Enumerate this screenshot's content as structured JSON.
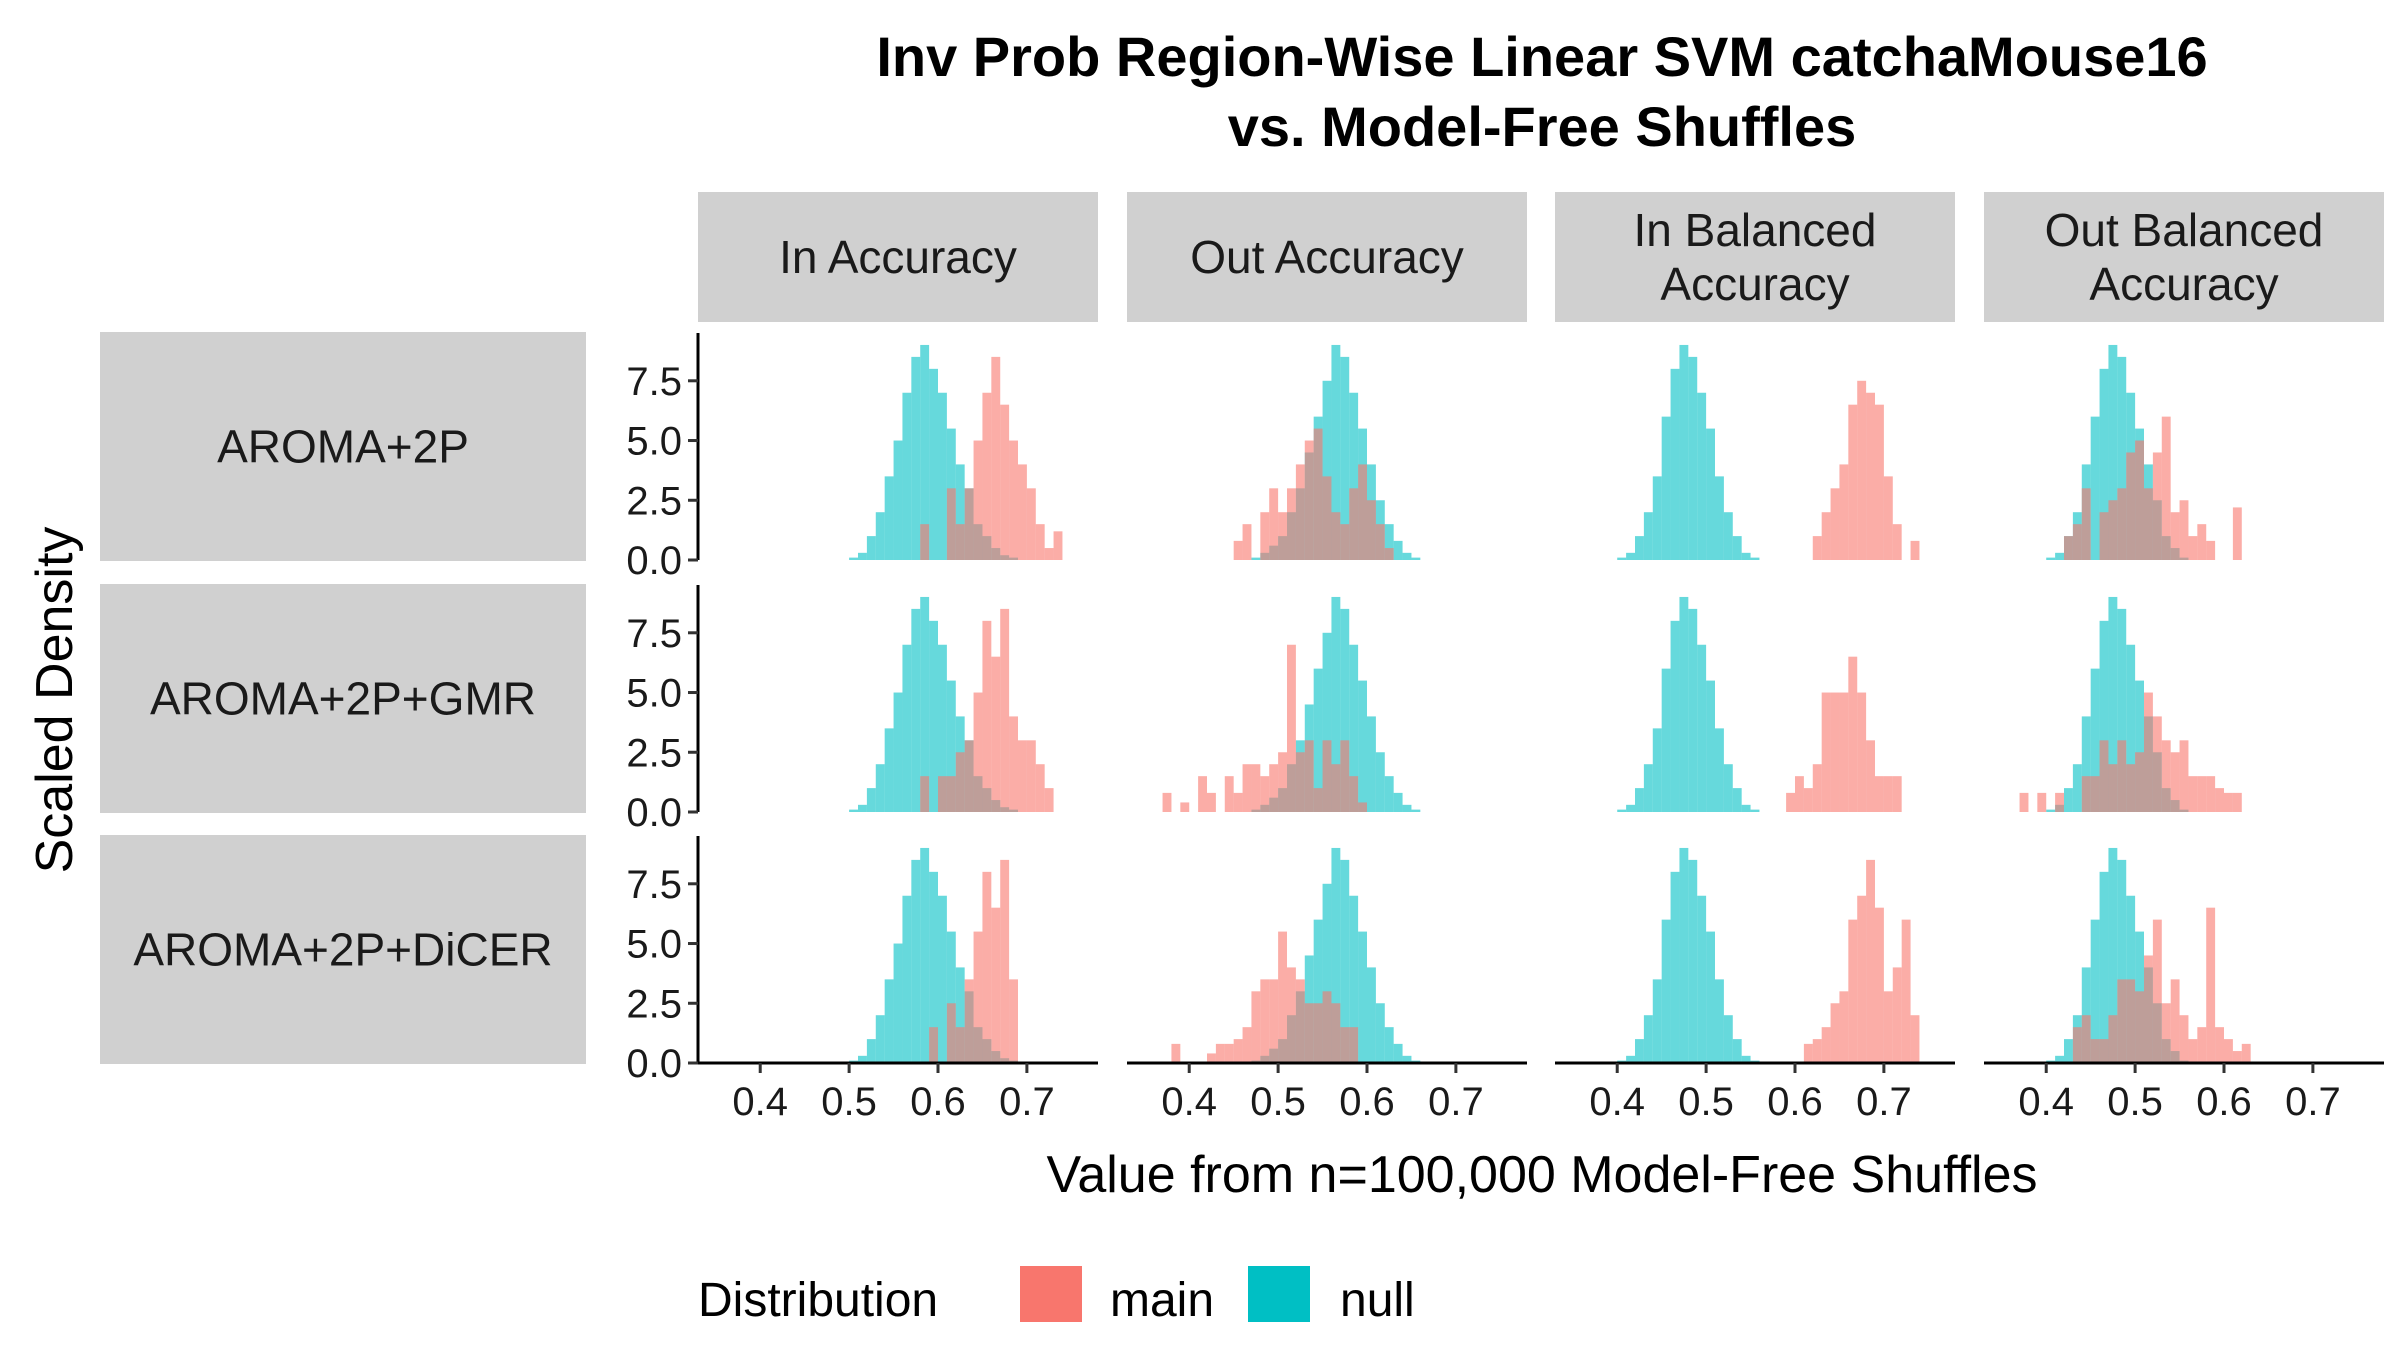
{
  "chart_data": {
    "type": "bar",
    "subtype": "faceted-histogram",
    "title_lines": [
      "Inv Prob Region-Wise Linear SVM catchaMouse16",
      "vs. Model-Free Shuffles"
    ],
    "xlabel": "Value from n=100,000 Model-Free Shuffles",
    "ylabel": "Scaled Density",
    "xlim": [
      0.33,
      0.78
    ],
    "ylim": [
      0,
      9.5
    ],
    "x_ticks": [
      0.4,
      0.5,
      0.6,
      0.7
    ],
    "x_tick_labels": [
      "0.4",
      "0.5",
      "0.6",
      "0.7"
    ],
    "y_ticks": [
      0,
      2.5,
      5,
      7.5
    ],
    "y_tick_labels": [
      "0.0",
      "2.5",
      "5.0",
      "7.5"
    ],
    "bin_width": 0.01,
    "columns": [
      "In Accuracy",
      "Out Accuracy",
      "In Balanced\nAccuracy",
      "Out Balanced\nAccuracy"
    ],
    "rows": [
      "AROMA+2P",
      "AROMA+2P+GMR",
      "AROMA+2P+DiCER"
    ],
    "legend": {
      "title": "Distribution",
      "position": "bottom",
      "entries": [
        {
          "name": "main",
          "color": "#F8766D"
        },
        {
          "name": "null",
          "color": "#00BFC4"
        }
      ]
    },
    "colors": {
      "main": "#F8766D",
      "null": "#00BFC4",
      "strip": "#d0d0d0"
    },
    "panels": [
      {
        "row": 0,
        "col": 0,
        "null": {
          "start": 0.5,
          "values": [
            0.1,
            0.3,
            1,
            2,
            3.5,
            5,
            7,
            8.5,
            9,
            8,
            7,
            5.5,
            4,
            3,
            1.5,
            1,
            0.5,
            0.2,
            0.1
          ]
        },
        "main": {
          "start": 0.58,
          "values": [
            1.5,
            0,
            0,
            3,
            1.5,
            3,
            5,
            7,
            8.5,
            6.5,
            5,
            4,
            3,
            1.5,
            0.5,
            1.2
          ]
        }
      },
      {
        "row": 0,
        "col": 1,
        "null": {
          "start": 0.47,
          "values": [
            0.1,
            0.3,
            0.6,
            1,
            2,
            3,
            4.5,
            6,
            7.5,
            9,
            8.5,
            7,
            5.5,
            4,
            2.5,
            1.5,
            0.8,
            0.3,
            0.1
          ]
        },
        "main": {
          "start": 0.45,
          "values": [
            0.8,
            1.5,
            0,
            2,
            3,
            2,
            3,
            4,
            5,
            5.5,
            3.5,
            2,
            1.5,
            3,
            4,
            2.5,
            1.5,
            0.5
          ]
        }
      },
      {
        "row": 0,
        "col": 2,
        "null": {
          "start": 0.4,
          "values": [
            0.1,
            0.3,
            1,
            2,
            3.5,
            6,
            8,
            9,
            8.5,
            7,
            5.5,
            3.5,
            2,
            1,
            0.3,
            0.1
          ]
        },
        "main": {
          "start": 0.62,
          "values": [
            1,
            2,
            3,
            4,
            6.5,
            7.5,
            7,
            6.5,
            3.5,
            1.5,
            0,
            0.8
          ]
        }
      },
      {
        "row": 0,
        "col": 3,
        "null": {
          "start": 0.4,
          "values": [
            0.1,
            0.3,
            1,
            2,
            4,
            6,
            8,
            9,
            8.5,
            7,
            5.5,
            4,
            2.5,
            1,
            0.5,
            0.1
          ]
        },
        "main": {
          "start": 0.42,
          "values": [
            1,
            1.5,
            3,
            0,
            2,
            2.5,
            3,
            4.5,
            5,
            3,
            4.5,
            6,
            2,
            2.5,
            1,
            1.5,
            0.8,
            0,
            0,
            2.2
          ]
        }
      },
      {
        "row": 1,
        "col": 0,
        "null": {
          "start": 0.5,
          "values": [
            0.1,
            0.3,
            1,
            2,
            3.5,
            5,
            7,
            8.5,
            9,
            8,
            7,
            5.5,
            4,
            3,
            1.5,
            1,
            0.5,
            0.2,
            0.1
          ]
        },
        "main": {
          "start": 0.58,
          "values": [
            1.5,
            0,
            1.5,
            1.5,
            2.5,
            3,
            5,
            8,
            6.5,
            8.5,
            4,
            3,
            3,
            2,
            1
          ]
        }
      },
      {
        "row": 1,
        "col": 1,
        "null": {
          "start": 0.47,
          "values": [
            0.1,
            0.3,
            0.6,
            1,
            2,
            3,
            4.5,
            6,
            7.5,
            9,
            8.5,
            7,
            5.5,
            4,
            2.5,
            1.5,
            0.8,
            0.3,
            0.1
          ]
        },
        "main": {
          "start": 0.37,
          "values": [
            0.8,
            0,
            0.4,
            0,
            1.5,
            0.8,
            0,
            1.5,
            0.8,
            2,
            2,
            1.5,
            2,
            2.5,
            7,
            2.5,
            3,
            1,
            3,
            2,
            3,
            1.5,
            0.4
          ]
        }
      },
      {
        "row": 1,
        "col": 2,
        "null": {
          "start": 0.4,
          "values": [
            0.1,
            0.3,
            1,
            2,
            3.5,
            6,
            8,
            9,
            8.5,
            7,
            5.5,
            3.5,
            2,
            1,
            0.3,
            0.1
          ]
        },
        "main": {
          "start": 0.59,
          "values": [
            0.8,
            1.5,
            1,
            2,
            5,
            5,
            5,
            6.5,
            5,
            3,
            1.5,
            1.5,
            1.5
          ]
        }
      },
      {
        "row": 1,
        "col": 3,
        "null": {
          "start": 0.4,
          "values": [
            0.1,
            0.3,
            1,
            2,
            4,
            6,
            8,
            9,
            8.5,
            7,
            5.5,
            4,
            2.5,
            1,
            0.5,
            0.1
          ]
        },
        "main": {
          "start": 0.37,
          "values": [
            0.8,
            0,
            0.8,
            0,
            0.8,
            0,
            0,
            1.5,
            1.5,
            3,
            2,
            3,
            2,
            2.5,
            5,
            4,
            3,
            2.5,
            3,
            1.5,
            1.5,
            1.5,
            1,
            0.8,
            0.8
          ]
        }
      },
      {
        "row": 2,
        "col": 0,
        "null": {
          "start": 0.5,
          "values": [
            0.1,
            0.3,
            1,
            2,
            3.5,
            5,
            7,
            8.5,
            9,
            8,
            7,
            5.5,
            4,
            3,
            1.5,
            1,
            0.5,
            0.2,
            0.1
          ]
        },
        "main": {
          "start": 0.59,
          "values": [
            1.5,
            0,
            2.5,
            1.5,
            3.5,
            5.5,
            8,
            6.5,
            8.5,
            3.5
          ]
        }
      },
      {
        "row": 2,
        "col": 1,
        "null": {
          "start": 0.47,
          "values": [
            0.1,
            0.3,
            0.6,
            1,
            2,
            3,
            4.5,
            6,
            7.5,
            9,
            8.5,
            7,
            5.5,
            4,
            2.5,
            1.5,
            0.8,
            0.3,
            0.1
          ]
        },
        "main": {
          "start": 0.38,
          "values": [
            0.8,
            0,
            0,
            0,
            0.4,
            0.8,
            0.8,
            1,
            1.5,
            3,
            3.5,
            3.5,
            5.5,
            4,
            3.5,
            2.5,
            2.5,
            3,
            2.5,
            1.5,
            1.5
          ]
        }
      },
      {
        "row": 2,
        "col": 2,
        "null": {
          "start": 0.4,
          "values": [
            0.1,
            0.3,
            1,
            2,
            3.5,
            6,
            8,
            9,
            8.5,
            7,
            5.5,
            3.5,
            2,
            1,
            0.3,
            0.1
          ]
        },
        "main": {
          "start": 0.61,
          "values": [
            0.8,
            1,
            1.5,
            2.5,
            3,
            6,
            7,
            8.5,
            6.5,
            3,
            4,
            6,
            2
          ]
        }
      },
      {
        "row": 2,
        "col": 3,
        "null": {
          "start": 0.4,
          "values": [
            0.1,
            0.3,
            1,
            2,
            4,
            6,
            8,
            9,
            8.5,
            7,
            5.5,
            4,
            2.5,
            1,
            0.5,
            0.1
          ]
        },
        "main": {
          "start": 0.43,
          "values": [
            1.5,
            2,
            1,
            1,
            2,
            3.5,
            3.5,
            3,
            4.5,
            6,
            2.5,
            3.5,
            2,
            1,
            1.5,
            6.5,
            1.5,
            1,
            0.5,
            0.8
          ]
        }
      }
    ]
  }
}
